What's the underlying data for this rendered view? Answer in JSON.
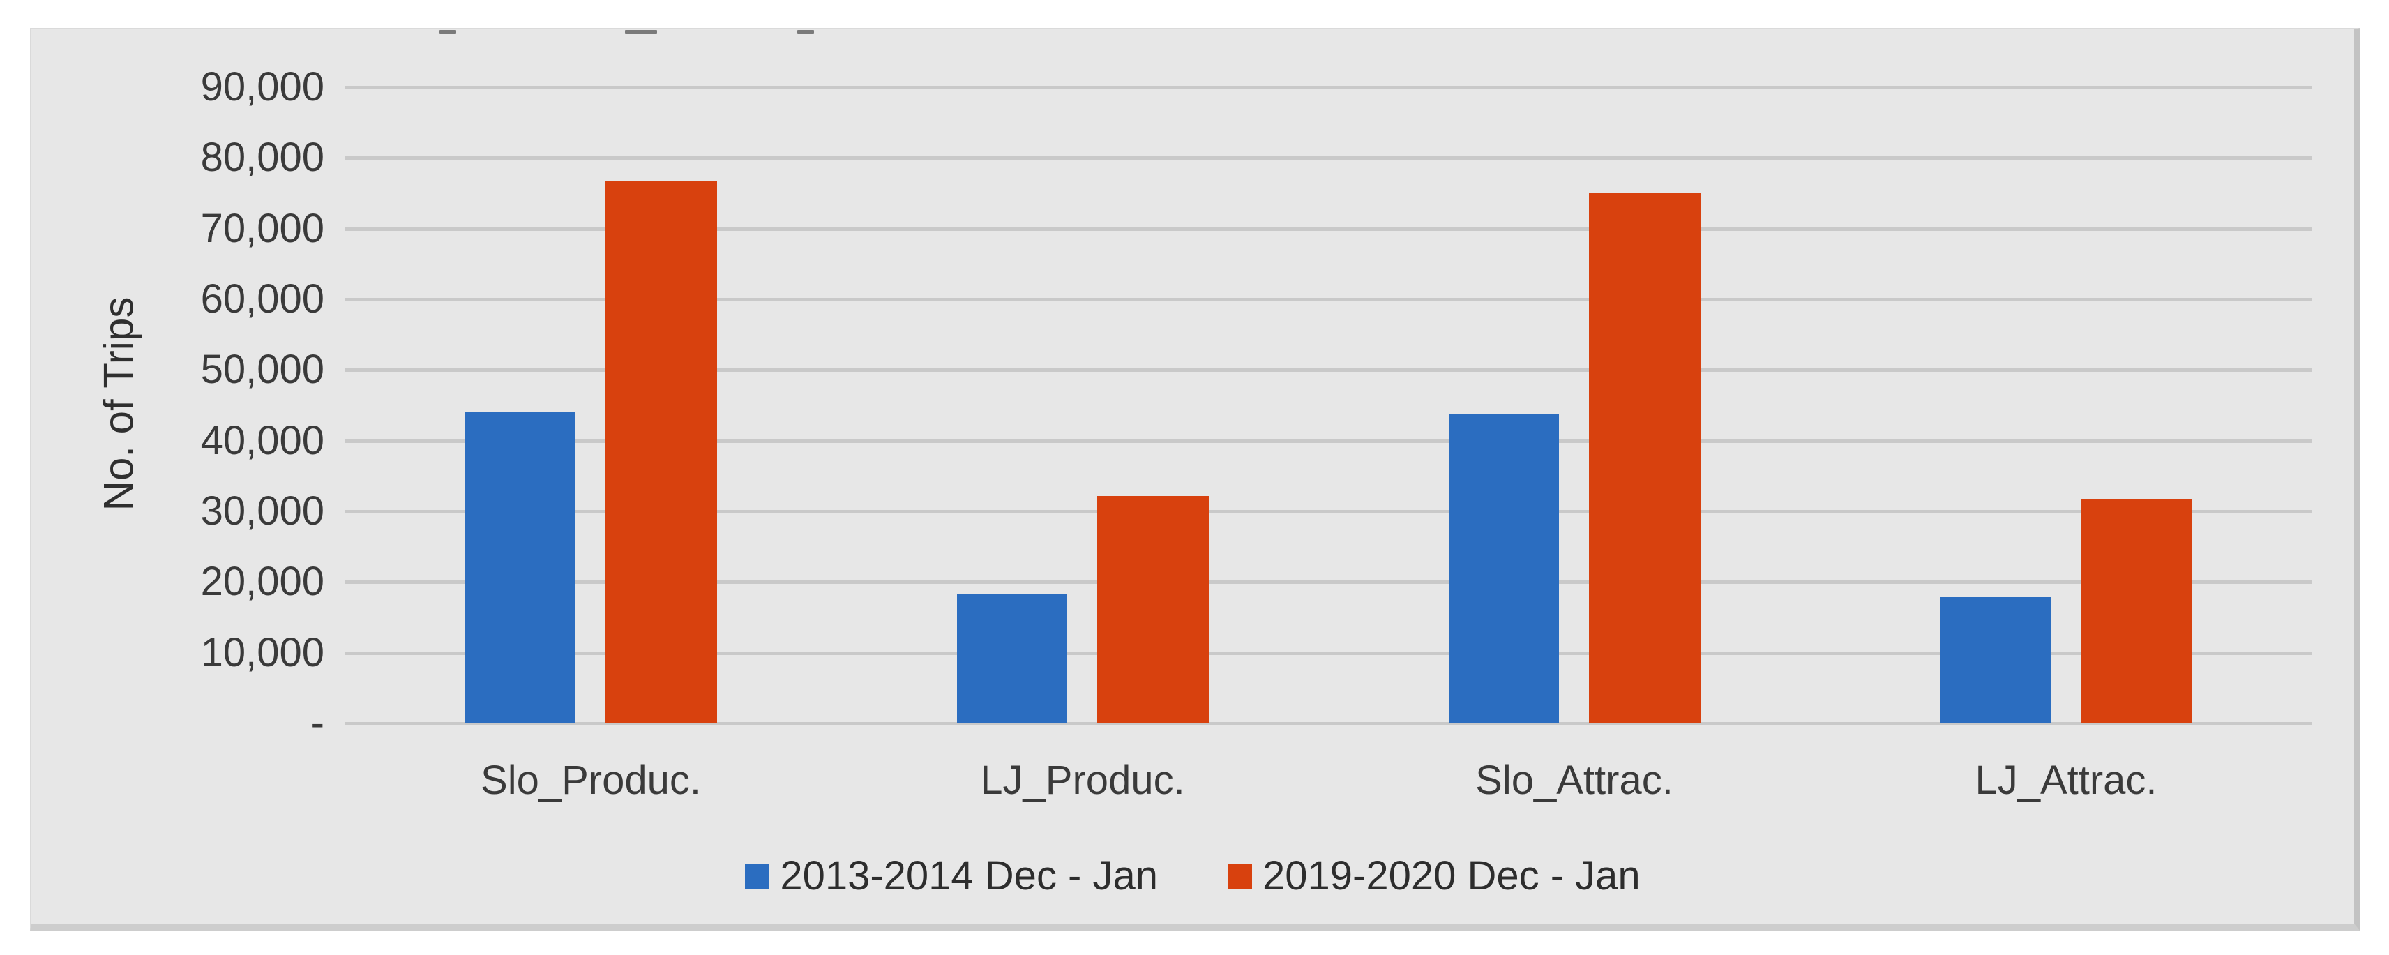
{
  "chart_data": {
    "type": "bar",
    "title": "",
    "title_note_visible_marks": 3,
    "categories": [
      "Slo_Produc.",
      "LJ_Produc.",
      "Slo_Attrac.",
      "LJ_Attrac."
    ],
    "series": [
      {
        "name": "2013-2014 Dec - Jan",
        "color": "#2b6dc0",
        "values": [
          44000,
          18300,
          43700,
          17900
        ]
      },
      {
        "name": "2019-2020 Dec - Jan",
        "color": "#d8410e",
        "values": [
          76700,
          32200,
          75000,
          31800
        ]
      }
    ],
    "xlabel": "",
    "ylabel": "No. of Trips",
    "ylim": [
      0,
      90000
    ],
    "ytick_step": 10000,
    "ytick_labels_top_to_bottom": [
      "90,000",
      "80,000",
      "70,000",
      "60,000",
      "50,000",
      "40,000",
      "30,000",
      "20,000",
      "10,000",
      "-"
    ],
    "grid": true,
    "gridline_color": "#c9c9c9",
    "plot_background": "#e7e7e7",
    "legend_position": "bottom"
  }
}
